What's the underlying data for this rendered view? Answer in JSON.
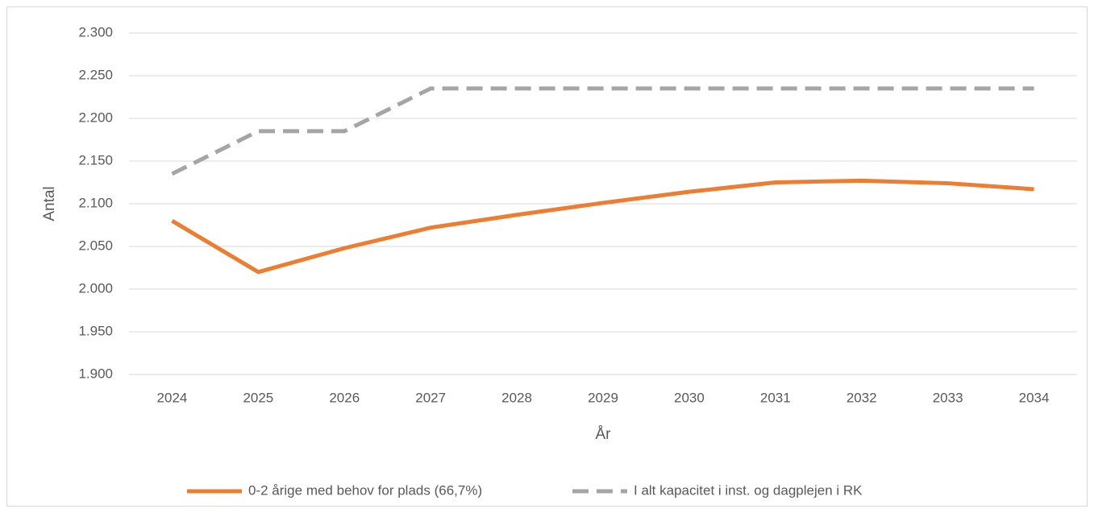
{
  "chart_data": {
    "type": "line",
    "x_label": "År",
    "y_label": "Antal",
    "categories": [
      "2024",
      "2025",
      "2026",
      "2027",
      "2028",
      "2029",
      "2030",
      "2031",
      "2032",
      "2033",
      "2034"
    ],
    "series": [
      {
        "name": "0-2 årige med behov for plads (66,7%)",
        "color": "#ed7d31",
        "dash": false,
        "values": [
          2080,
          2020,
          2048,
          2072,
          2087,
          2101,
          2114,
          2125,
          2127,
          2124,
          2117
        ]
      },
      {
        "name": "I alt kapacitet i inst. og dagplejen i RK",
        "color": "#a5a5a5",
        "dash": true,
        "values": [
          2135,
          2185,
          2185,
          2235,
          2235,
          2235,
          2235,
          2235,
          2235,
          2235,
          2235
        ]
      }
    ],
    "ylim": [
      1900,
      2300
    ],
    "yticks": [
      {
        "value": 1900,
        "label": "1.900"
      },
      {
        "value": 1950,
        "label": "1.950"
      },
      {
        "value": 2000,
        "label": "2.000"
      },
      {
        "value": 2050,
        "label": "2.050"
      },
      {
        "value": 2100,
        "label": "2.100"
      },
      {
        "value": 2150,
        "label": "2.150"
      },
      {
        "value": 2200,
        "label": "2.200"
      },
      {
        "value": 2250,
        "label": "2.250"
      },
      {
        "value": 2300,
        "label": "2.300"
      }
    ],
    "grid": true,
    "legend": "bottom"
  }
}
